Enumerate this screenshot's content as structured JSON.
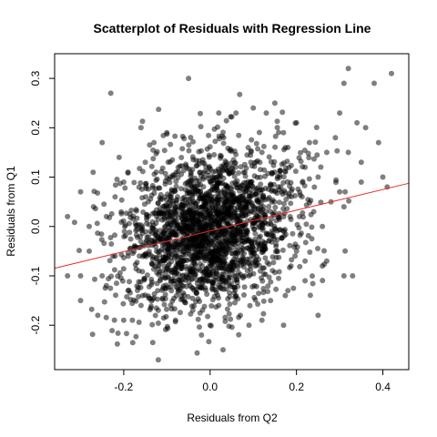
{
  "chart_data": {
    "type": "scatter",
    "title": "Scatterplot of Residuals with Regression Line",
    "xlabel": "Residuals from Q2",
    "ylabel": "Residuals from Q1",
    "xlim": [
      -0.36,
      0.46
    ],
    "ylim": [
      -0.29,
      0.35
    ],
    "x_ticks": [
      -0.2,
      0.0,
      0.2,
      0.4
    ],
    "x_tick_labels": [
      "-0.2",
      "0.0",
      "0.2",
      "0.4"
    ],
    "y_ticks": [
      -0.2,
      -0.1,
      0.0,
      0.1,
      0.2,
      0.3
    ],
    "y_tick_labels": [
      "-0.2",
      "-0.1",
      "0.0",
      "0.1",
      "0.2",
      "0.3"
    ],
    "grid": false,
    "legend": "none",
    "point_color": "#000000",
    "point_opacity": 0.5,
    "regression_color": "#e32b2b",
    "regression_line": {
      "intercept": -0.009,
      "slope": 0.21
    },
    "points": [
      [
        -0.23,
        0.27
      ],
      [
        -0.05,
        0.3
      ],
      [
        0.32,
        0.32
      ],
      [
        0.42,
        0.31
      ],
      [
        0.31,
        0.29
      ],
      [
        0.38,
        0.29
      ],
      [
        -0.25,
        0.17
      ],
      [
        -0.16,
        0.2
      ],
      [
        0.02,
        0.23
      ],
      [
        0.06,
        0.23
      ],
      [
        0.2,
        0.21
      ],
      [
        0.3,
        0.23
      ],
      [
        -0.12,
        -0.27
      ],
      [
        0.03,
        -0.25
      ],
      [
        -0.02,
        -0.22
      ],
      [
        0.0,
        -0.2
      ],
      [
        0.25,
        -0.18
      ],
      [
        -0.3,
        0.07
      ],
      [
        -0.33,
        0.02
      ],
      [
        -0.3,
        -0.1
      ],
      [
        -0.33,
        -0.1
      ],
      [
        -0.3,
        -0.15
      ],
      [
        -0.26,
        -0.18
      ],
      [
        0.36,
        0.2
      ],
      [
        0.39,
        0.17
      ],
      [
        0.34,
        0.21
      ],
      [
        0.41,
        0.08
      ],
      [
        0.4,
        0.1
      ],
      [
        0.22,
        -0.07
      ],
      [
        0.27,
        -0.07
      ],
      [
        0.26,
        -0.08
      ],
      [
        0.31,
        -0.1
      ],
      [
        0.33,
        -0.1
      ],
      [
        0.09,
        -0.2
      ],
      [
        -0.28,
        0.0
      ],
      [
        -0.27,
        0.04
      ],
      [
        -0.28,
        -0.05
      ],
      [
        -0.25,
        -0.1
      ],
      [
        -0.24,
        -0.12
      ],
      [
        -0.2,
        -0.19
      ],
      [
        -0.18,
        -0.19
      ],
      [
        0.12,
        -0.19
      ],
      [
        0.07,
        -0.18
      ],
      [
        -0.08,
        -0.19
      ],
      [
        -0.04,
        -0.17
      ],
      [
        0.1,
        0.24
      ],
      [
        0.15,
        0.25
      ],
      [
        0.13,
        0.23
      ],
      [
        0.17,
        0.19
      ],
      [
        0.23,
        0.17
      ],
      [
        0.29,
        0.18
      ],
      [
        0.32,
        0.15
      ],
      [
        0.35,
        0.13
      ],
      [
        0.27,
        0.15
      ],
      [
        0.25,
        0.1
      ],
      [
        0.3,
        0.07
      ],
      [
        0.28,
        0.05
      ],
      [
        0.22,
        0.12
      ],
      [
        0.18,
        0.16
      ],
      [
        0.12,
        0.15
      ],
      [
        -0.1,
        0.19
      ],
      [
        -0.13,
        0.17
      ],
      [
        -0.15,
        0.13
      ],
      [
        -0.19,
        0.11
      ],
      [
        -0.2,
        0.09
      ],
      [
        -0.22,
        0.06
      ],
      [
        -0.24,
        0.02
      ],
      [
        -0.22,
        -0.06
      ],
      [
        -0.19,
        -0.13
      ],
      [
        -0.16,
        -0.16
      ],
      [
        -0.12,
        -0.17
      ],
      [
        -0.06,
        -0.15
      ],
      [
        0.02,
        -0.16
      ],
      [
        0.06,
        -0.14
      ],
      [
        0.14,
        -0.15
      ],
      [
        0.18,
        -0.13
      ],
      [
        0.22,
        -0.11
      ],
      [
        0.2,
        -0.05
      ],
      [
        0.26,
        0.0
      ],
      [
        0.24,
        0.03
      ],
      [
        0.31,
        0.04
      ],
      [
        0.35,
        0.09
      ]
    ]
  }
}
